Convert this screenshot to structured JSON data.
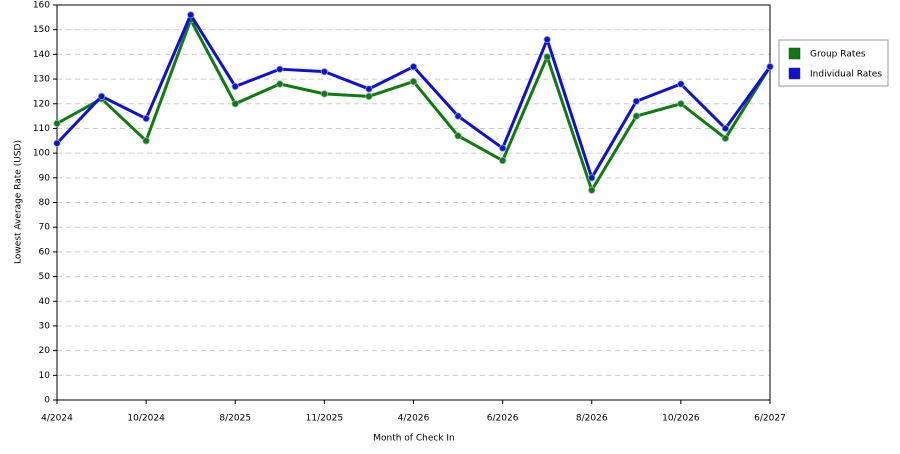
{
  "chart_data": {
    "type": "line",
    "x_label": "Month of Check In",
    "y_label": "Lowest Average Rate (USD)",
    "categories": [
      "4/2024",
      null,
      "10/2024",
      null,
      "8/2025",
      null,
      "11/2025",
      null,
      "4/2026",
      null,
      "6/2026",
      null,
      "8/2026",
      null,
      "10/2026",
      null,
      "6/2027"
    ],
    "series": [
      {
        "name": "Group Rates",
        "color": "#0f7a0f",
        "values": [
          112,
          122,
          105,
          154,
          120,
          128,
          124,
          123,
          129,
          107,
          97,
          139,
          85,
          115,
          120,
          106,
          135
        ]
      },
      {
        "name": "Individual Rates",
        "color": "#0f0fd6",
        "values": [
          104,
          123,
          114,
          156,
          127,
          134,
          133,
          126,
          135,
          115,
          102,
          146,
          90,
          121,
          128,
          110,
          135
        ]
      }
    ],
    "ylim": [
      0,
      160
    ],
    "yticks": [
      0,
      10,
      20,
      30,
      40,
      50,
      60,
      70,
      80,
      90,
      100,
      110,
      120,
      130,
      140,
      150,
      160
    ],
    "grid": true,
    "legend": "right"
  }
}
